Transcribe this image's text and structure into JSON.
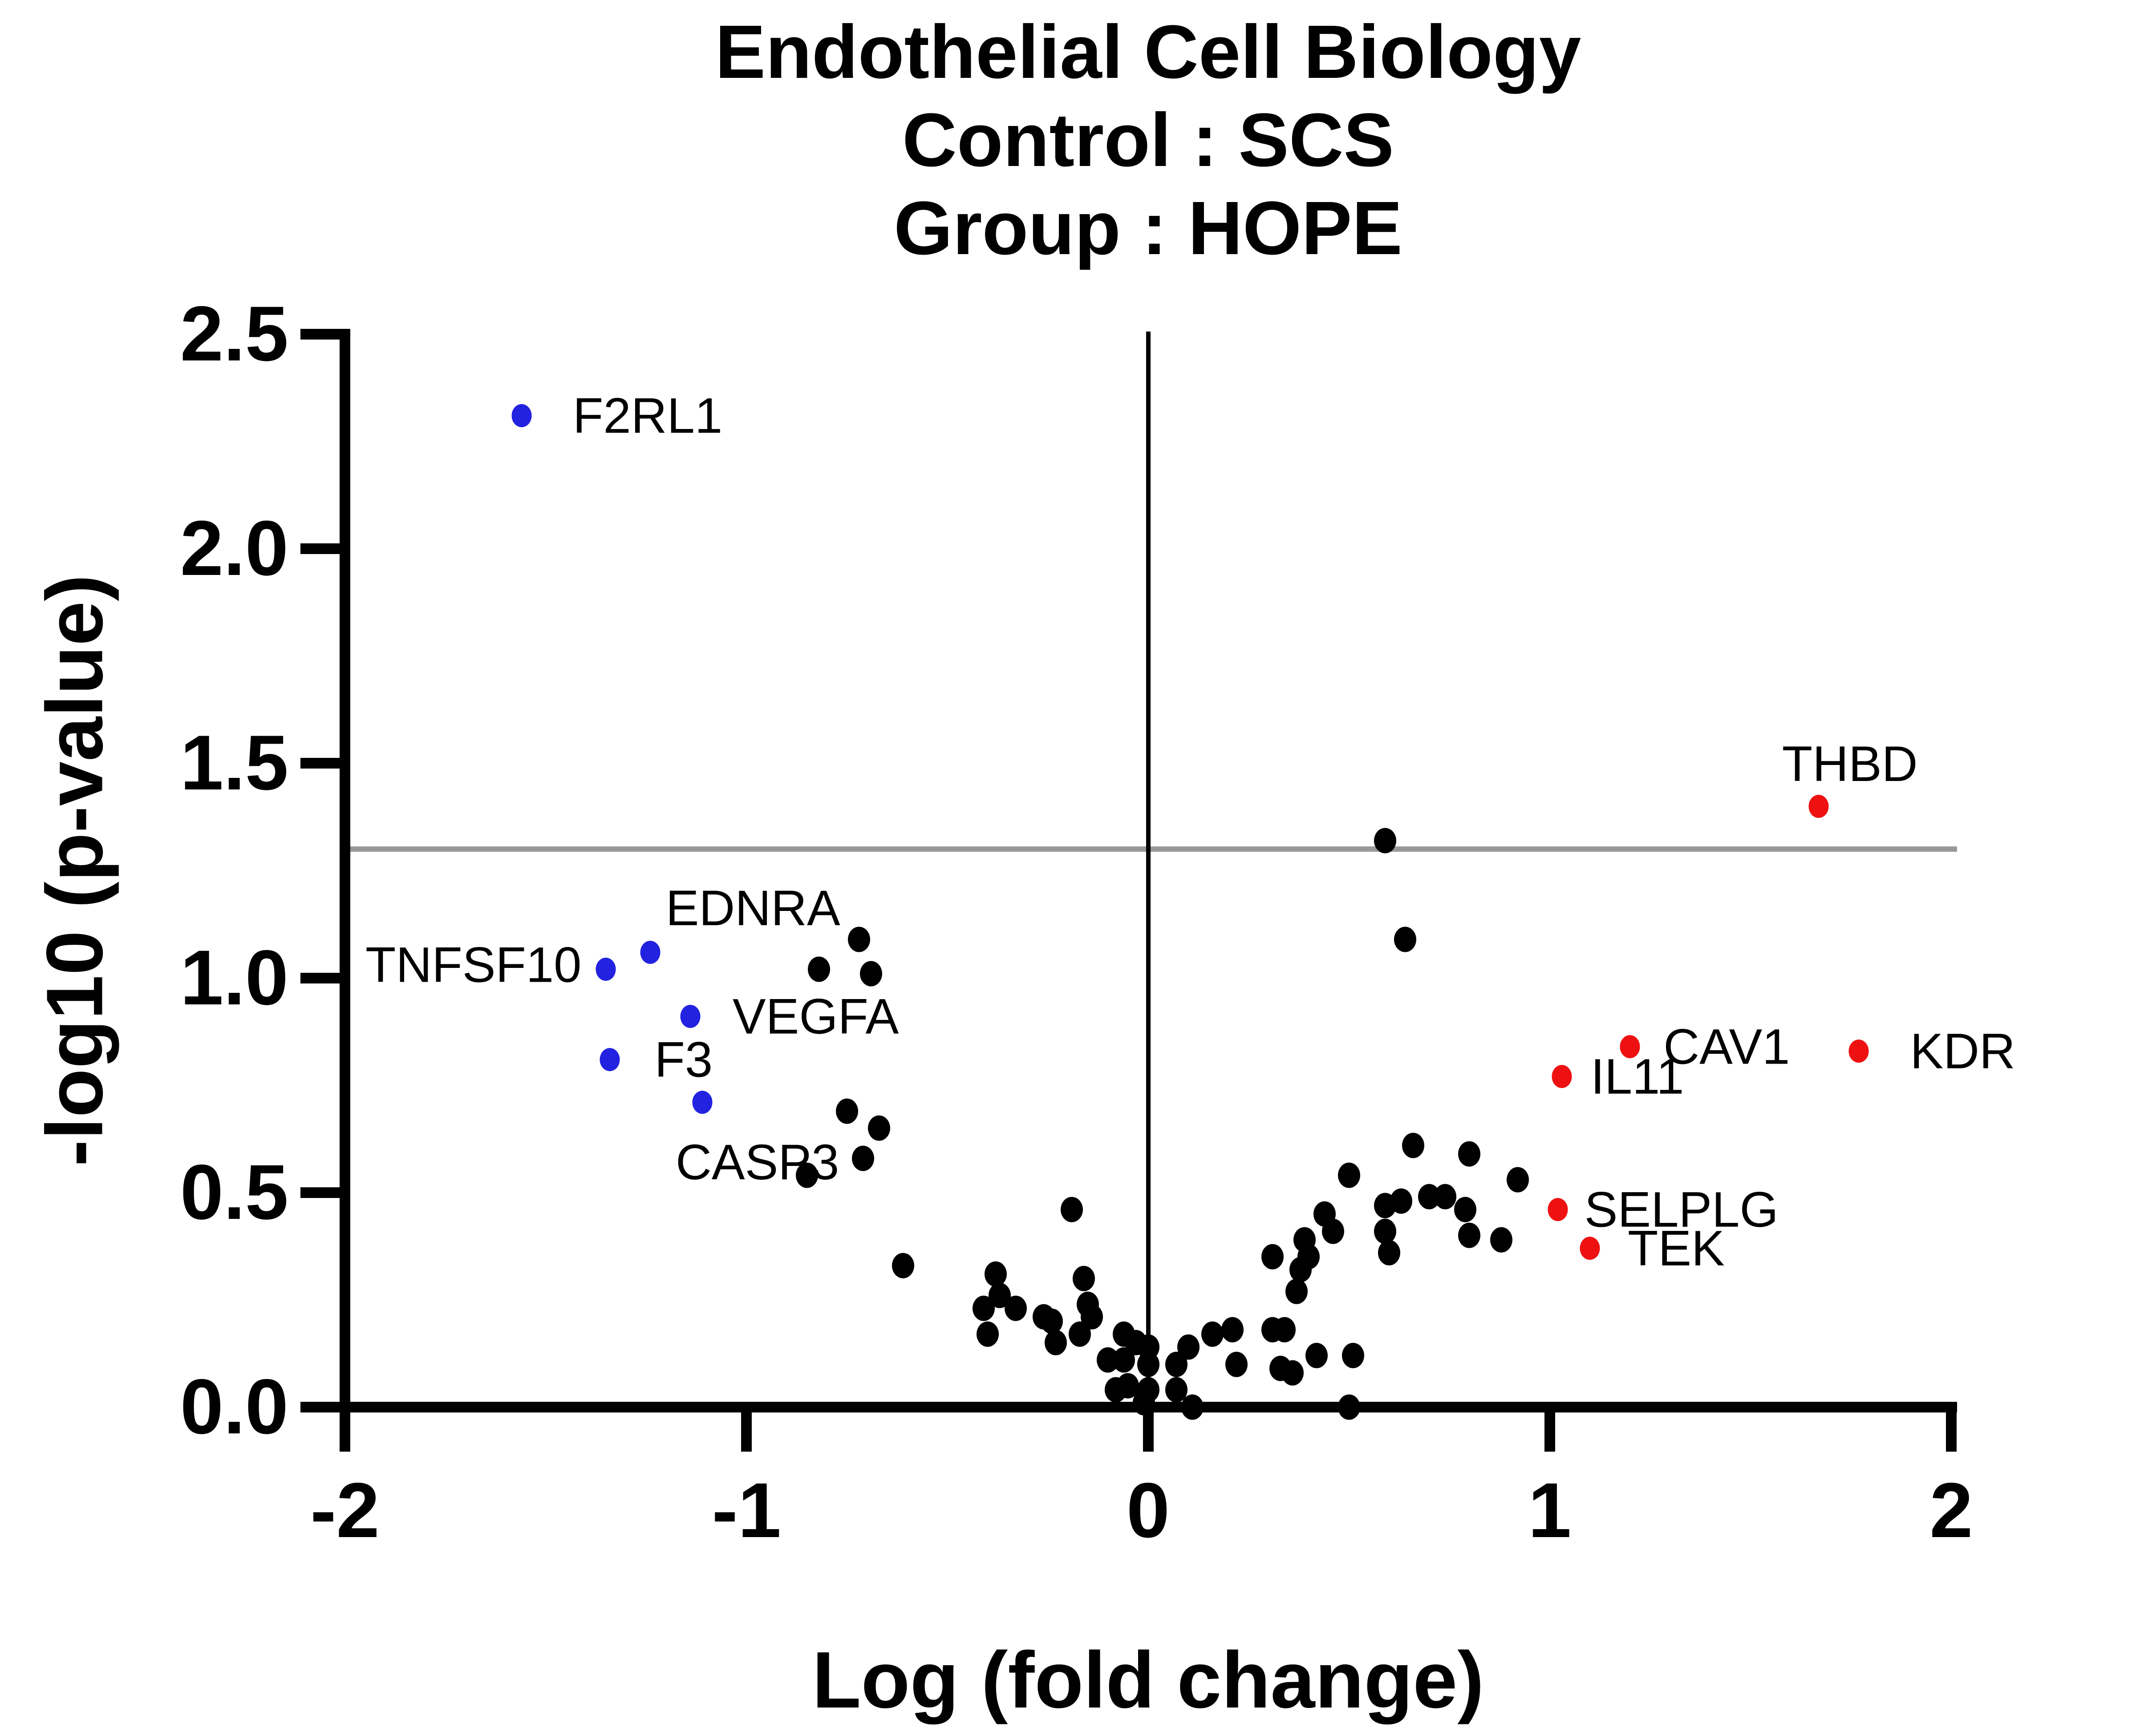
{
  "title": {
    "line1": "Endothelial Cell Biology",
    "line2": "Control : SCS",
    "line3": "Group : HOPE"
  },
  "chart_data": {
    "type": "scatter",
    "subtype": "volcano-plot",
    "title_lines": [
      "Endothelial Cell Biology",
      "Control : SCS",
      "Group : HOPE"
    ],
    "xlabel": "Log (fold change)",
    "ylabel": "-log10 (p-value)",
    "xlim": [
      -2,
      2
    ],
    "ylim": [
      0,
      2.5
    ],
    "grid": false,
    "legend": "none",
    "x_ticks": [
      {
        "value": -2,
        "label": "-2"
      },
      {
        "value": -1,
        "label": "-1"
      },
      {
        "value": 0,
        "label": "0"
      },
      {
        "value": 1,
        "label": "1"
      },
      {
        "value": 2,
        "label": "2"
      }
    ],
    "y_ticks": [
      {
        "value": 0,
        "label": "0.0"
      },
      {
        "value": 0.5,
        "label": "0.5"
      },
      {
        "value": 1,
        "label": "1.0"
      },
      {
        "value": 1.5,
        "label": "1.5"
      },
      {
        "value": 2,
        "label": "2.0"
      },
      {
        "value": 2.5,
        "label": "2.5"
      }
    ],
    "reference_lines": [
      {
        "orientation": "horizontal",
        "y": 1.3,
        "color": "#999999",
        "meaning": "significance threshold"
      },
      {
        "orientation": "vertical",
        "x": 0,
        "color": "#000000",
        "meaning": "zero fold change"
      }
    ],
    "colors": {
      "downregulated": "#2222e0",
      "upregulated": "#ee1111",
      "nonsignificant": "#000000"
    },
    "series": [
      {
        "name": "downregulated-labeled",
        "color": "#2222e0",
        "points": [
          {
            "gene": "F2RL1",
            "x": -1.56,
            "y": 2.31,
            "label_side": "right",
            "label_dx": 115
          },
          {
            "gene": "TNFSF10",
            "x": -1.35,
            "y": 1.02,
            "label_side": "left"
          },
          {
            "gene": "EDNRA",
            "x": -1.24,
            "y": 1.06,
            "label_side": "above-right"
          },
          {
            "gene": "VEGFA",
            "x": -1.14,
            "y": 0.91,
            "label_side": "right",
            "label_dx": 95
          },
          {
            "gene": "F3",
            "x": -1.34,
            "y": 0.81,
            "label_side": "right",
            "label_dx": 100
          },
          {
            "gene": "CASP3",
            "x": -1.11,
            "y": 0.71,
            "label_side": "below-left"
          }
        ]
      },
      {
        "name": "upregulated-labeled",
        "color": "#ee1111",
        "points": [
          {
            "gene": "THBD",
            "x": 1.67,
            "y": 1.4,
            "label_side": "above"
          },
          {
            "gene": "CAV1",
            "x": 1.2,
            "y": 0.84,
            "label_side": "right",
            "label_dx": 75
          },
          {
            "gene": "IL11",
            "x": 1.03,
            "y": 0.77,
            "label_side": "right",
            "label_dx": 65
          },
          {
            "gene": "KDR",
            "x": 1.77,
            "y": 0.83,
            "label_side": "right",
            "label_dx": 115
          },
          {
            "gene": "SELPLG",
            "x": 1.02,
            "y": 0.46,
            "label_side": "right",
            "label_dx": 60
          },
          {
            "gene": "TEK",
            "x": 1.1,
            "y": 0.37,
            "label_side": "right",
            "label_dx": 85
          }
        ]
      },
      {
        "name": "nonsignificant",
        "color": "#000000",
        "points": [
          [
            -0.72,
            1.09
          ],
          [
            -0.82,
            1.02
          ],
          [
            -0.69,
            1.01
          ],
          [
            -0.75,
            0.69
          ],
          [
            -0.67,
            0.65
          ],
          [
            -0.71,
            0.58
          ],
          [
            -0.85,
            0.54
          ],
          [
            -0.61,
            0.33
          ],
          [
            -0.38,
            0.31
          ],
          [
            -0.37,
            0.26
          ],
          [
            -0.41,
            0.23
          ],
          [
            -0.33,
            0.23
          ],
          [
            -0.4,
            0.17
          ],
          [
            -0.26,
            0.21
          ],
          [
            -0.23,
            0.15
          ],
          [
            -0.19,
            0.46
          ],
          [
            -0.16,
            0.3
          ],
          [
            -0.15,
            0.24
          ],
          [
            -0.14,
            0.21
          ],
          [
            -0.24,
            0.2
          ],
          [
            -0.17,
            0.17
          ],
          [
            -0.06,
            0.17
          ],
          [
            -0.03,
            0.15
          ],
          [
            0.0,
            0.14
          ],
          [
            -0.1,
            0.11
          ],
          [
            -0.06,
            0.11
          ],
          [
            0.0,
            0.1
          ],
          [
            -0.08,
            0.04
          ],
          [
            -0.05,
            0.05
          ],
          [
            0.0,
            0.04
          ],
          [
            -0.01,
            0.01
          ],
          [
            0.07,
            0.1
          ],
          [
            0.07,
            0.04
          ],
          [
            0.11,
            0.0
          ],
          [
            0.1,
            0.14
          ],
          [
            0.16,
            0.17
          ],
          [
            0.21,
            0.18
          ],
          [
            0.31,
            0.18
          ],
          [
            0.34,
            0.18
          ],
          [
            0.22,
            0.1
          ],
          [
            0.33,
            0.09
          ],
          [
            0.36,
            0.08
          ],
          [
            0.38,
            0.32
          ],
          [
            0.42,
            0.12
          ],
          [
            0.5,
            0.0
          ],
          [
            0.51,
            0.12
          ],
          [
            0.31,
            0.35
          ],
          [
            0.39,
            0.39
          ],
          [
            0.4,
            0.35
          ],
          [
            0.44,
            0.45
          ],
          [
            0.46,
            0.41
          ],
          [
            0.37,
            0.27
          ],
          [
            0.5,
            0.54
          ],
          [
            0.59,
            0.47
          ],
          [
            0.59,
            0.41
          ],
          [
            0.6,
            0.36
          ],
          [
            0.63,
            0.48
          ],
          [
            0.66,
            0.61
          ],
          [
            0.7,
            0.49
          ],
          [
            0.74,
            0.49
          ],
          [
            0.8,
            0.59
          ],
          [
            0.79,
            0.46
          ],
          [
            0.8,
            0.4
          ],
          [
            0.92,
            0.53
          ],
          [
            0.88,
            0.39
          ],
          [
            0.59,
            1.32
          ],
          [
            0.64,
            1.09
          ]
        ]
      }
    ]
  }
}
